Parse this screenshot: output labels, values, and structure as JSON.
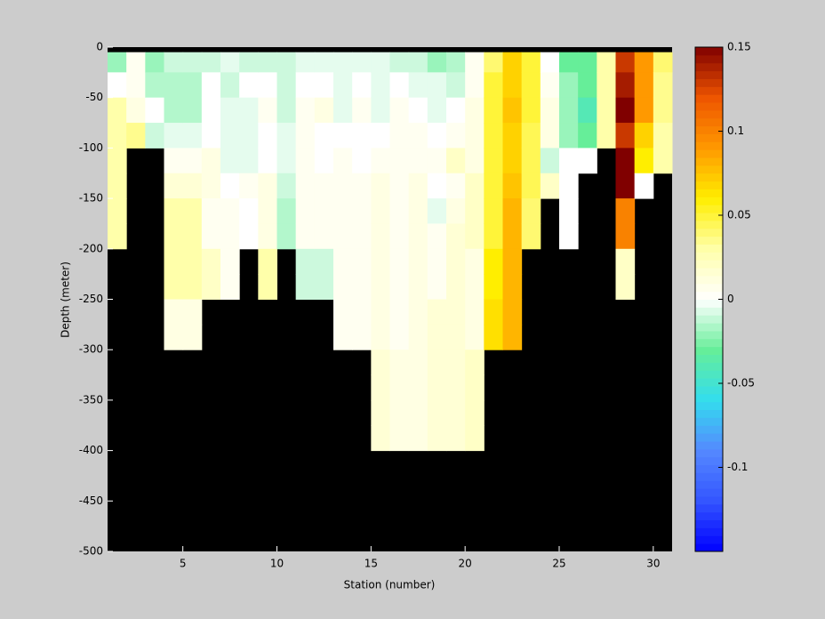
{
  "chart_data": {
    "type": "heatmap",
    "xlabel": "Station (number)",
    "ylabel": "Depth (meter)",
    "xlim": [
      1,
      31
    ],
    "ylim": [
      -500,
      0
    ],
    "xticks": [
      5,
      10,
      15,
      20,
      25,
      30
    ],
    "yticks": [
      0,
      -50,
      -100,
      -150,
      -200,
      -250,
      -300,
      -350,
      -400,
      -450,
      -500
    ],
    "x_edges": [
      1,
      2,
      3,
      4,
      5,
      6,
      7,
      8,
      9,
      10,
      11,
      12,
      13,
      14,
      15,
      16,
      17,
      18,
      19,
      20,
      21,
      22,
      23,
      24,
      25,
      26,
      27,
      28,
      29,
      30,
      31
    ],
    "y_edges": [
      -5,
      -25,
      -50,
      -75,
      -100,
      -125,
      -150,
      -175,
      -200,
      -225,
      -250,
      -275,
      -300,
      -325,
      -350,
      -375,
      -400,
      -425,
      -450,
      -475,
      -500
    ],
    "background": "#000000",
    "clim": [
      -0.15,
      0.15
    ],
    "cticks": [
      0.15,
      0.1,
      0.05,
      0,
      -0.05,
      -0.1
    ],
    "colormap": [
      "#0000ff",
      "#3355ff",
      "#5588ff",
      "#33ddee",
      "#66ee99",
      "#ffffff",
      "#ffffaa",
      "#ffee00",
      "#ff9900",
      "#ee5500",
      "#800000"
    ],
    "values": [
      [
        -0.02,
        0,
        0.03,
        0.03,
        0.03,
        0.03,
        0.03,
        0.03,
        null,
        null,
        null,
        null,
        null,
        null,
        null,
        null,
        null,
        null,
        null,
        null
      ],
      [
        0.005,
        0.005,
        0.01,
        0.035,
        null,
        null,
        null,
        null,
        null,
        null,
        null,
        null,
        null,
        null,
        null,
        null,
        null,
        null,
        null,
        null
      ],
      [
        -0.02,
        -0.015,
        0,
        -0.01,
        null,
        null,
        null,
        null,
        null,
        null,
        null,
        null,
        null,
        null,
        null,
        null,
        null,
        null,
        null,
        null
      ],
      [
        -0.01,
        -0.015,
        -0.015,
        -0.005,
        0.005,
        0.015,
        0.03,
        0.03,
        0.03,
        0.03,
        0.01,
        0.01,
        null,
        null,
        null,
        null,
        null,
        null,
        null,
        null
      ],
      [
        -0.01,
        -0.015,
        -0.015,
        -0.005,
        0.005,
        0.015,
        0.03,
        0.03,
        0.03,
        0.03,
        0.01,
        0.01,
        null,
        null,
        null,
        null,
        null,
        null,
        null,
        null
      ],
      [
        -0.01,
        0,
        0,
        0,
        0.01,
        0.01,
        0.005,
        0.005,
        0.02,
        0.02,
        null,
        null,
        null,
        null,
        null,
        null,
        null,
        null,
        null,
        null
      ],
      [
        -0.005,
        -0.01,
        -0.005,
        -0.005,
        -0.005,
        0,
        0.005,
        0.005,
        0.005,
        0.005,
        null,
        null,
        null,
        null,
        null,
        null,
        null,
        null,
        null,
        null
      ],
      [
        -0.01,
        0,
        -0.005,
        -0.005,
        -0.005,
        0.005,
        0,
        0,
        null,
        null,
        null,
        null,
        null,
        null,
        null,
        null,
        null,
        null,
        null,
        null
      ],
      [
        -0.01,
        0,
        0.005,
        0,
        0,
        0.01,
        0.01,
        0.01,
        0.03,
        0.03,
        null,
        null,
        null,
        null,
        null,
        null,
        null,
        null,
        null,
        null
      ],
      [
        -0.01,
        -0.01,
        -0.01,
        -0.005,
        -0.005,
        -0.01,
        -0.015,
        -0.015,
        null,
        null,
        null,
        null,
        null,
        null,
        null,
        null,
        null,
        null,
        null,
        null
      ],
      [
        -0.005,
        0,
        0.005,
        0.005,
        0.005,
        0.005,
        0.005,
        0.005,
        -0.01,
        -0.01,
        null,
        null,
        null,
        null,
        null,
        null,
        null,
        null,
        null,
        null
      ],
      [
        -0.005,
        0,
        0.01,
        0,
        0,
        0.005,
        0.005,
        0.005,
        -0.01,
        -0.01,
        null,
        null,
        null,
        null,
        null,
        null,
        null,
        null,
        null,
        null
      ],
      [
        -0.005,
        -0.005,
        -0.005,
        0,
        0.005,
        0.005,
        0.005,
        0.005,
        0.005,
        0.005,
        0.005,
        0.005,
        null,
        null,
        null,
        null,
        null,
        null,
        null,
        null
      ],
      [
        -0.005,
        0,
        0.005,
        0,
        0,
        0.005,
        0.005,
        0.005,
        0.005,
        0.005,
        0.005,
        0.005,
        null,
        null,
        null,
        null,
        null,
        null,
        null,
        null
      ],
      [
        -0.005,
        -0.005,
        -0.005,
        0,
        0.005,
        0.01,
        0.01,
        0.01,
        0.01,
        0.01,
        0.01,
        0.01,
        0.015,
        0.015,
        0.015,
        0.015,
        null,
        null,
        null,
        null
      ],
      [
        -0.01,
        0,
        0.005,
        0.005,
        0.005,
        0.005,
        0.005,
        0.005,
        0.005,
        0.005,
        0.005,
        0.005,
        0.01,
        0.01,
        0.01,
        0.01,
        null,
        null,
        null,
        null
      ],
      [
        -0.01,
        -0.005,
        0,
        0.005,
        0.005,
        0.01,
        0.01,
        0.01,
        0.01,
        0.01,
        0.01,
        0.01,
        0.01,
        0.01,
        0.01,
        0.01,
        null,
        null,
        null,
        null
      ],
      [
        -0.02,
        -0.005,
        -0.005,
        0,
        0.005,
        0,
        -0.005,
        0.005,
        0.005,
        0.005,
        0.015,
        0.015,
        0.015,
        0.015,
        0.015,
        0.015,
        null,
        null,
        null,
        null
      ],
      [
        -0.015,
        -0.01,
        0,
        0.005,
        0.02,
        0.005,
        0.01,
        0.015,
        0.015,
        0.015,
        0.015,
        0.015,
        0.015,
        0.015,
        0.015,
        0.015,
        null,
        null,
        null,
        null
      ],
      [
        0.005,
        0.005,
        0.01,
        0.01,
        0.01,
        0.02,
        0.02,
        0.02,
        0.01,
        0.01,
        0.01,
        0.01,
        0.02,
        0.02,
        0.02,
        0.02,
        null,
        null,
        null,
        null
      ],
      [
        0.04,
        0.05,
        0.05,
        0.05,
        0.05,
        0.05,
        0.05,
        0.05,
        0.06,
        0.06,
        0.065,
        0.065,
        null,
        null,
        null,
        null,
        null,
        null,
        null,
        null
      ],
      [
        0.07,
        0.07,
        0.075,
        0.07,
        0.07,
        0.075,
        0.08,
        0.08,
        0.08,
        0.08,
        0.08,
        0.08,
        null,
        null,
        null,
        null,
        null,
        null,
        null,
        null
      ],
      [
        0.05,
        0.05,
        0.05,
        0.045,
        0.045,
        0.045,
        0.04,
        0.04,
        null,
        null,
        null,
        null,
        null,
        null,
        null,
        null,
        null,
        null,
        null,
        null
      ],
      [
        0,
        0.005,
        0.01,
        0.01,
        -0.01,
        0.02,
        null,
        null,
        null,
        null,
        null,
        null,
        null,
        null,
        null,
        null,
        null,
        null,
        null,
        null
      ],
      [
        -0.03,
        -0.02,
        -0.02,
        -0.02,
        0,
        0,
        0,
        0,
        null,
        null,
        null,
        null,
        null,
        null,
        null,
        null,
        null,
        null,
        null,
        null
      ],
      [
        -0.03,
        -0.03,
        -0.04,
        -0.03,
        0,
        null,
        null,
        null,
        null,
        null,
        null,
        null,
        null,
        null,
        null,
        null,
        null,
        null,
        null,
        null
      ],
      [
        0.03,
        0.03,
        0.03,
        0.03,
        null,
        null,
        null,
        null,
        null,
        null,
        null,
        null,
        null,
        null,
        null,
        null,
        null,
        null,
        null,
        null
      ],
      [
        0.13,
        0.14,
        0.15,
        0.13,
        0.15,
        0.15,
        0.1,
        0.1,
        0.02,
        0.02,
        null,
        null,
        null,
        null,
        null,
        null,
        null,
        null,
        null,
        null
      ],
      [
        0.09,
        0.09,
        0.09,
        0.07,
        0.06,
        0,
        null,
        null,
        null,
        null,
        null,
        null,
        null,
        null,
        null,
        null,
        null,
        null,
        null,
        null
      ],
      [
        0.04,
        0.035,
        0.035,
        0.03,
        0.03,
        null,
        null,
        null,
        null,
        null,
        null,
        null,
        null,
        null,
        null,
        null,
        null,
        null,
        null,
        null
      ]
    ]
  }
}
